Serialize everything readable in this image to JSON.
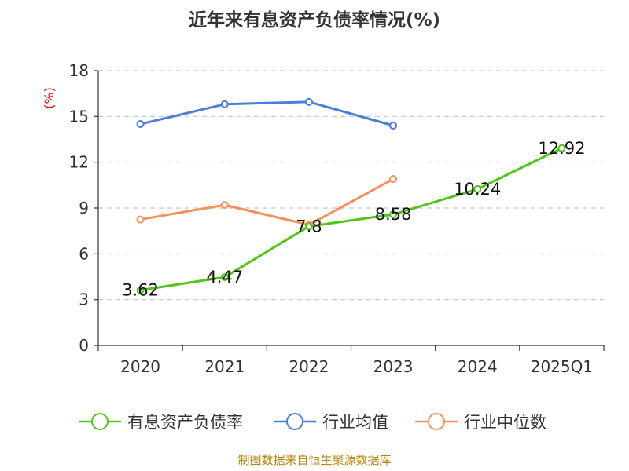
{
  "chart_data": {
    "type": "line",
    "title": "近年来有息资产负债率情况(%)",
    "ylabel": "(%)",
    "xlabel": "",
    "categories": [
      "2020",
      "2021",
      "2022",
      "2023",
      "2024",
      "2025Q1"
    ],
    "ylim": [
      0,
      18
    ],
    "yticks": [
      0,
      3,
      6,
      9,
      12,
      15,
      18
    ],
    "grid": true,
    "legend_position": "bottom",
    "series": [
      {
        "name": "有息资产负债率",
        "color": "#52c41a",
        "values": [
          3.62,
          4.47,
          7.8,
          8.58,
          10.24,
          12.92
        ],
        "data_labels": [
          "3.62",
          "4.47",
          "7.8",
          "8.58",
          "10.24",
          "12.92"
        ]
      },
      {
        "name": "行业均值",
        "color": "#4a7fd9",
        "values": [
          14.5,
          15.8,
          15.95,
          14.4,
          null,
          null
        ],
        "data_labels": []
      },
      {
        "name": "行业中位数",
        "color": "#f5905b",
        "values": [
          8.25,
          9.2,
          7.9,
          10.9,
          null,
          null
        ],
        "data_labels": []
      }
    ],
    "source": "制图数据来自恒生聚源数据库"
  }
}
